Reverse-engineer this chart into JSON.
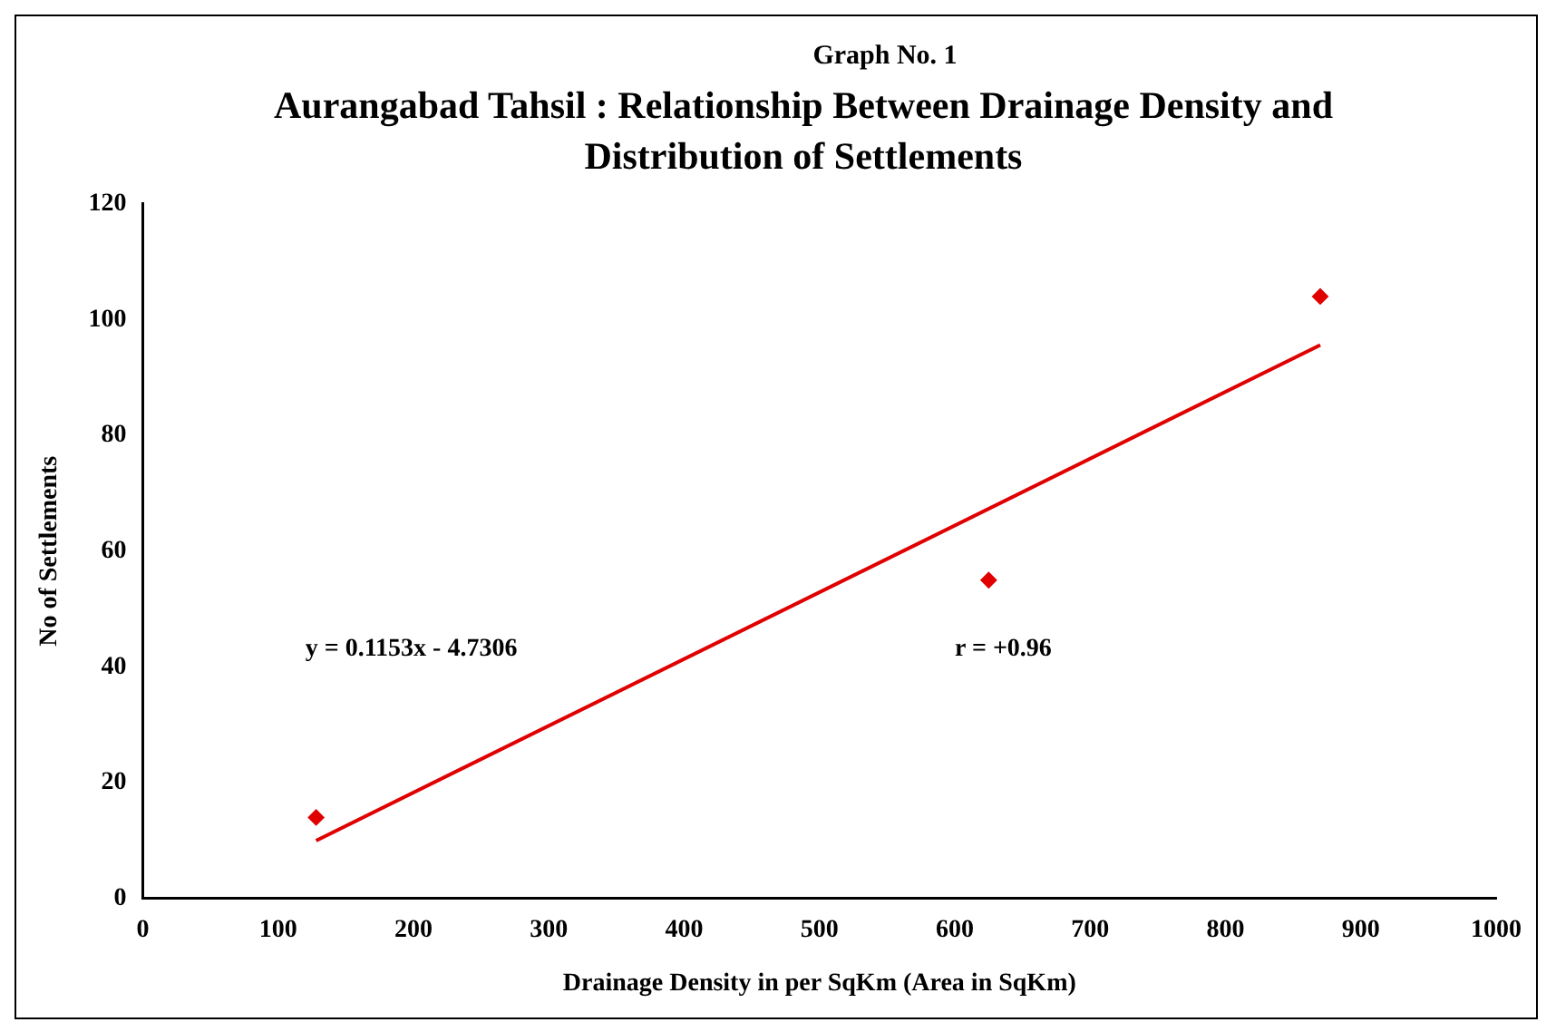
{
  "chart_data": {
    "type": "scatter",
    "subtitle": "Graph No. 1",
    "title": "Aurangabad Tahsil : Relationship Between Drainage Density and Distribution of Settlements",
    "xlabel": "Drainage Density in per SqKm (Area in SqKm)",
    "ylabel": "No of Settlements",
    "series": [
      {
        "color": "#e00000",
        "marker": "diamond",
        "x": [
          128,
          625,
          870
        ],
        "values": [
          14,
          55,
          104
        ]
      },
      {
        "type": "line",
        "color": "#e00000",
        "marker": "none",
        "x": [
          128,
          870
        ],
        "values": [
          10,
          95.6
        ]
      }
    ],
    "xlim": [
      0,
      1000
    ],
    "xticks": [
      0,
      100,
      200,
      300,
      400,
      500,
      600,
      700,
      800,
      900,
      1000
    ],
    "ylim": [
      0,
      120
    ],
    "yticks": [
      0,
      20,
      40,
      60,
      80,
      100,
      120
    ],
    "grid": false,
    "legend": false,
    "annotations": [
      "y = 0.1153x - 4.7306",
      "r = +0.96"
    ]
  }
}
